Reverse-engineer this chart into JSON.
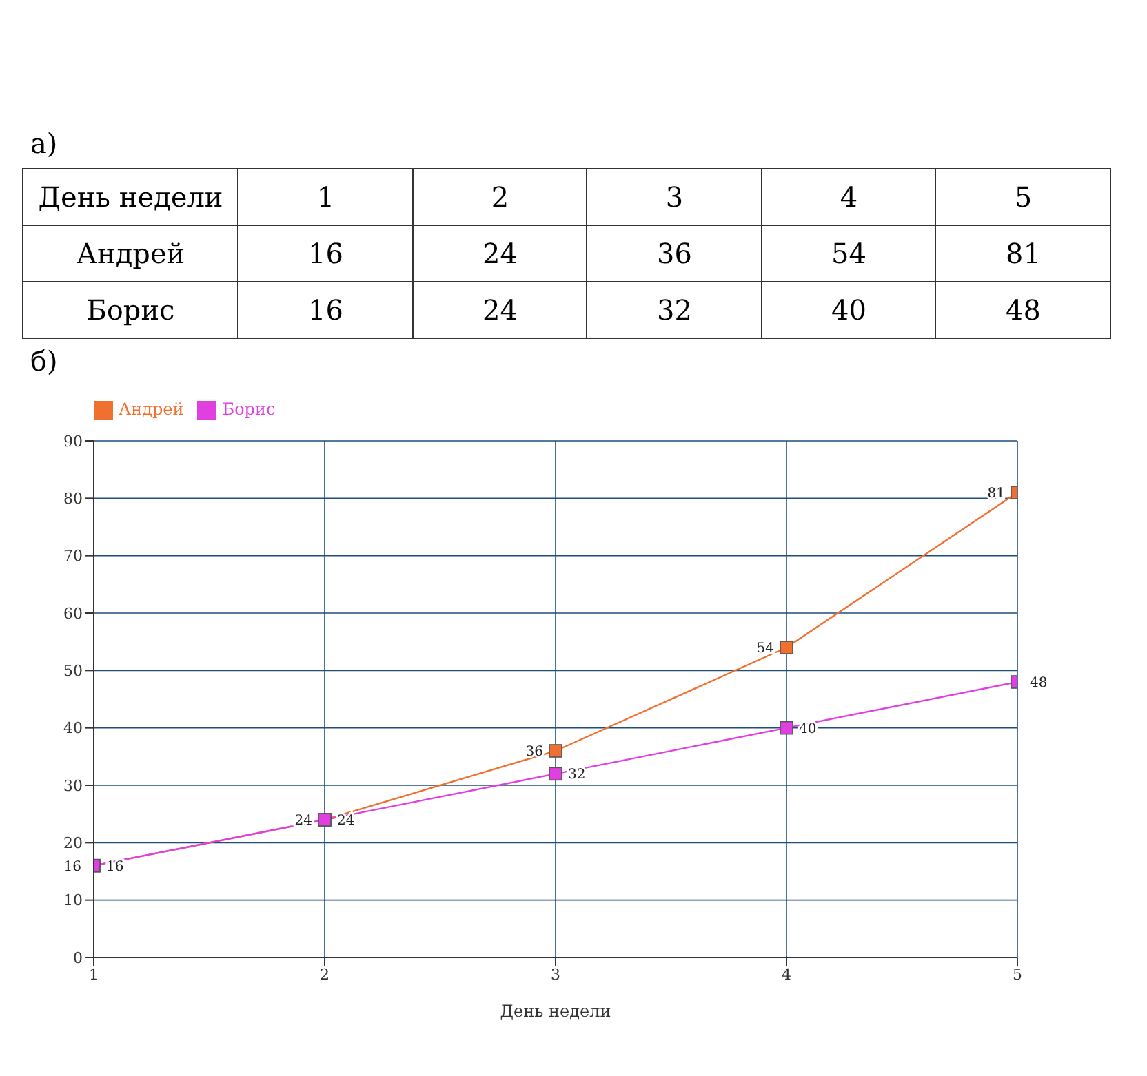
{
  "chart_data": [
    {
      "type": "heatmap",
      "xlabel": "День недели",
      "categories": [
        "1",
        "2",
        "3",
        "4",
        "5"
      ],
      "y_categories": [
        "Андрей",
        "Борис"
      ],
      "cells": [
        [
          16,
          24,
          36,
          54,
          81
        ],
        [
          16,
          24,
          32,
          40,
          48
        ]
      ],
      "data_labels": true,
      "annotations": [
        "а)"
      ]
    },
    {
      "type": "line",
      "xlabel": "День недели",
      "x": [
        1,
        2,
        3,
        4,
        5
      ],
      "series": [
        {
          "name": "Андрей",
          "color": "#f07030",
          "values": [
            16,
            24,
            36,
            54,
            81
          ]
        },
        {
          "name": "Борис",
          "color": "#e040e0",
          "values": [
            16,
            24,
            32,
            40,
            48
          ]
        }
      ],
      "xlim": [
        1,
        5
      ],
      "xticks": [
        1,
        2,
        3,
        4,
        5
      ],
      "ylim": [
        0,
        90
      ],
      "yticks": [
        0,
        10,
        20,
        30,
        40,
        50,
        60,
        70,
        80,
        90
      ],
      "grid": true,
      "legend": "top left",
      "marker": "square",
      "line_style": "solid",
      "data_labels": true,
      "annotations": [
        "б)"
      ]
    }
  ]
}
